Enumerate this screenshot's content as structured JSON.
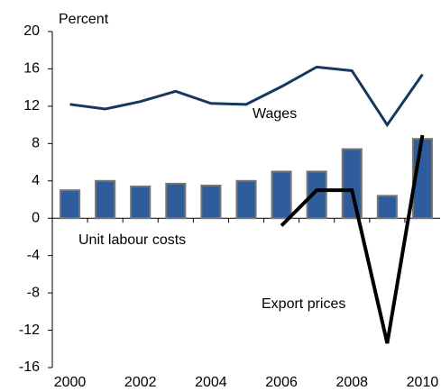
{
  "chart_data": {
    "type": "combo",
    "ylabel": "Percent",
    "categories": [
      "2000",
      null,
      "2002",
      null,
      "2004",
      null,
      "2006",
      null,
      "2008",
      null,
      "2010"
    ],
    "ylim": [
      -16,
      20
    ],
    "yticks": [
      -16,
      -12,
      -8,
      -4,
      0,
      4,
      8,
      12,
      16,
      20
    ],
    "series": [
      {
        "name": "Unit labour costs",
        "type": "bar",
        "color": "#2f5d9b",
        "values": [
          3.0,
          4.0,
          3.4,
          3.7,
          3.5,
          4.0,
          5.0,
          5.0,
          7.4,
          2.4,
          8.5
        ]
      },
      {
        "name": "Wages",
        "type": "line",
        "color": "#17375e",
        "values": [
          12.2,
          11.7,
          12.5,
          13.6,
          12.3,
          12.2,
          14.1,
          16.2,
          15.8,
          10.0,
          15.4
        ]
      },
      {
        "name": "Export prices",
        "type": "line",
        "color": "#000000",
        "values": [
          null,
          null,
          null,
          null,
          null,
          null,
          -0.8,
          3.0,
          3.0,
          -13.4,
          8.9
        ]
      }
    ]
  }
}
